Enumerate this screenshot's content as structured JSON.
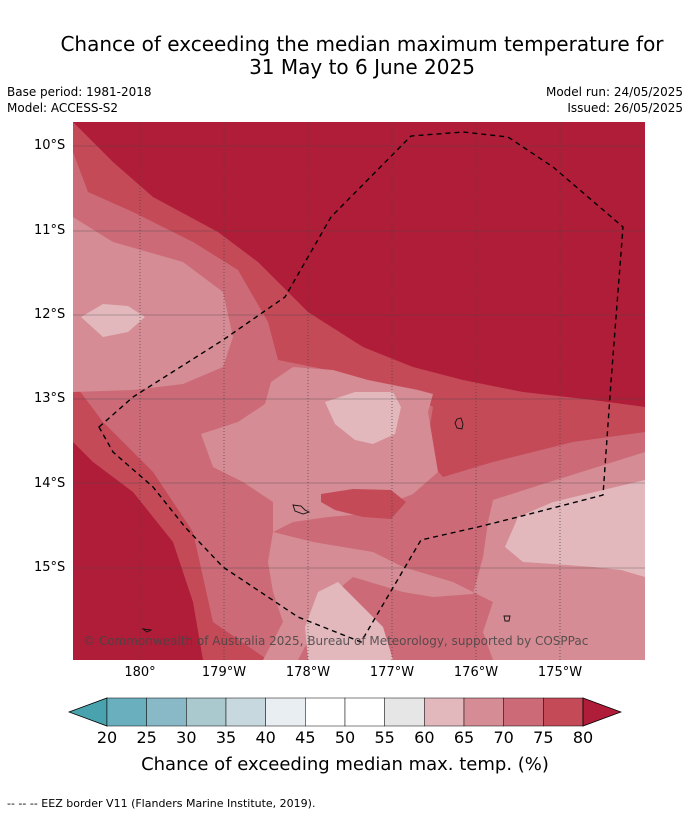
{
  "title": {
    "line1": "Chance of exceeding the median maximum temperature for",
    "line2": "31 May to 6 June 2025"
  },
  "meta": {
    "base_period": "Base period: 1981-2018",
    "model": "Model: ACCESS-S2",
    "model_run": "Model run: 24/05/2025",
    "issued": "Issued: 26/05/2025"
  },
  "map": {
    "lat_labels": [
      "10°S",
      "11°S",
      "12°S",
      "13°S",
      "14°S",
      "15°S"
    ],
    "lon_labels": [
      "180°",
      "179°W",
      "178°W",
      "177°W",
      "176°W",
      "175°W"
    ],
    "copyright": "© Commonwealth of Australia 2025, Bureau of Meteorology, supported by COSPPac",
    "colors": {
      "p80plus": "#b01d38",
      "p75_80": "#c44a58",
      "p70_75": "#cc6b77",
      "p65_70": "#d58c94",
      "p60_65": "#e2b8bd",
      "gridline": "#444444",
      "eez_line": "#000000"
    }
  },
  "colorbar": {
    "ticks": [
      "20",
      "25",
      "30",
      "35",
      "40",
      "45",
      "50",
      "55",
      "60",
      "65",
      "70",
      "75",
      "80"
    ],
    "colors": [
      "#49a3ae",
      "#6aafbd",
      "#89b8c6",
      "#a9c9cf",
      "#c7d9de",
      "#e8eef1",
      "#ffffff",
      "#ffffff",
      "#e6e6e6",
      "#e2b8bd",
      "#d58c94",
      "#cc6b77",
      "#c44a58",
      "#b01d38"
    ],
    "label": "Chance of exceeding median max. temp. (%)"
  },
  "footer": "--  --  -- EEZ border V11 (Flanders Marine Institute, 2019)."
}
